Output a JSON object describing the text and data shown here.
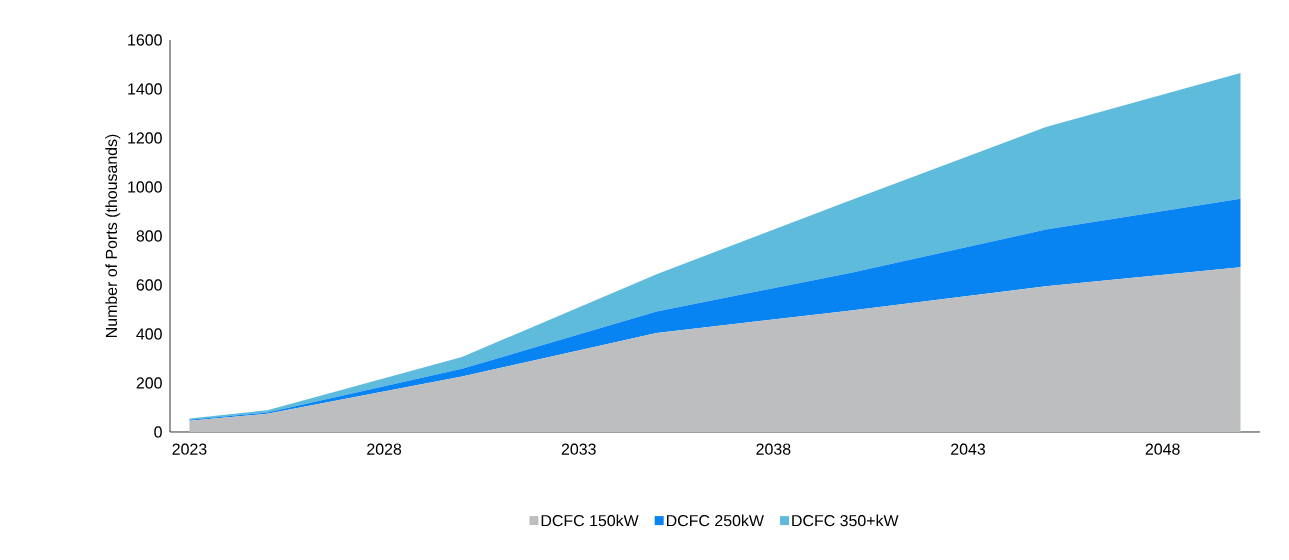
{
  "chart_data": {
    "type": "area",
    "ylabel": "Number of Ports (thousands)",
    "stacked": true,
    "x": [
      2023,
      2025,
      2030,
      2035,
      2040,
      2045,
      2050
    ],
    "xlim": [
      2022.5,
      2050.5
    ],
    "xticks": [
      2023,
      2028,
      2033,
      2038,
      2043,
      2048
    ],
    "ylim": [
      0,
      1600
    ],
    "yticks": [
      0,
      200,
      400,
      600,
      800,
      1000,
      1200,
      1400,
      1600
    ],
    "grid": false,
    "legend": "bottom",
    "series": [
      {
        "name": "DCFC 150kW",
        "color": "#bdbec0",
        "values": [
          46,
          74,
          226,
          404,
          496,
          595,
          672
        ]
      },
      {
        "name": "DCFC 250kW",
        "color": "#0884f2",
        "values": [
          4,
          6,
          32,
          88,
          154,
          231,
          280
        ]
      },
      {
        "name": "DCFC 350+kW",
        "color": "#5fbbdb",
        "values": [
          5,
          9,
          48,
          152,
          297,
          419,
          513
        ]
      }
    ]
  }
}
